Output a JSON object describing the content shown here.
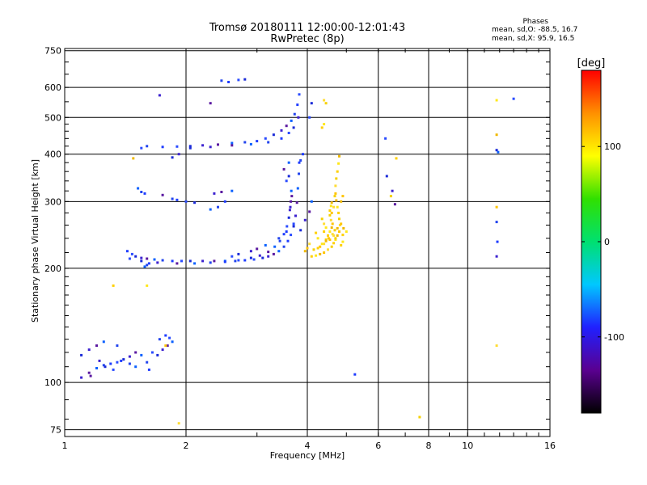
{
  "chart_data": {
    "type": "scatter",
    "title": "Tromsø 20180111 12:00:00-12:01:43",
    "subtitle": "RwPretec (8p)",
    "xlabel": "Frequency [MHz]",
    "ylabel": "Stationary phase Virtual Height [km]",
    "x_scale": "log",
    "y_scale": "log",
    "xlim": [
      1,
      16
    ],
    "ylim": [
      72,
      760
    ],
    "x_ticks": [
      1,
      2,
      4,
      6,
      8,
      10,
      16
    ],
    "y_ticks": [
      75,
      100,
      200,
      300,
      400,
      500,
      600,
      750
    ],
    "grid": true,
    "stats": {
      "heading": "Phases",
      "line1": "mean, sd,O: -88.5, 16.7",
      "line2": "mean, sd,X:  95.9, 16.5"
    },
    "colorbar": {
      "label": "[deg]",
      "range": [
        -180,
        180
      ],
      "ticks": [
        100,
        0,
        -100
      ],
      "colors": [
        "#000000",
        "#5a0090",
        "#2020ff",
        "#00c8ff",
        "#00e070",
        "#30e000",
        "#ffff00",
        "#ff9000",
        "#ff0000"
      ]
    },
    "series": [
      {
        "points": [
          [
            1.43,
            222
          ],
          [
            1.47,
            218
          ],
          [
            1.5,
            215
          ],
          [
            1.55,
            213
          ],
          [
            1.6,
            212
          ],
          [
            1.67,
            211
          ],
          [
            1.75,
            210
          ],
          [
            1.85,
            209
          ],
          [
            1.95,
            209
          ],
          [
            2.05,
            209
          ],
          [
            2.2,
            209
          ],
          [
            2.35,
            209
          ],
          [
            2.5,
            209
          ],
          [
            2.65,
            209
          ],
          [
            2.8,
            210
          ],
          [
            2.95,
            211
          ],
          [
            3.1,
            213
          ],
          [
            3.2,
            215
          ],
          [
            3.3,
            218
          ],
          [
            3.4,
            222
          ],
          [
            3.5,
            228
          ],
          [
            3.58,
            236
          ],
          [
            3.64,
            245
          ],
          [
            3.7,
            258
          ],
          [
            3.74,
            275
          ],
          [
            3.77,
            298
          ],
          [
            3.79,
            325
          ],
          [
            3.81,
            355
          ],
          [
            3.82,
            380
          ],
          [
            1.45,
            212
          ],
          [
            1.55,
            209
          ],
          [
            1.7,
            207
          ],
          [
            1.9,
            206
          ],
          [
            2.1,
            206
          ],
          [
            2.3,
            207
          ],
          [
            2.5,
            208
          ],
          [
            2.7,
            210
          ],
          [
            2.9,
            213
          ],
          [
            3.05,
            216
          ],
          [
            3.2,
            221
          ],
          [
            3.32,
            228
          ],
          [
            3.42,
            236
          ],
          [
            3.5,
            246
          ],
          [
            3.56,
            258
          ],
          [
            3.6,
            272
          ],
          [
            3.63,
            290
          ],
          [
            3.66,
            310
          ],
          [
            1.58,
            202
          ],
          [
            1.6,
            204
          ],
          [
            1.62,
            206
          ],
          [
            2.6,
            215
          ],
          [
            2.7,
            218
          ],
          [
            2.9,
            222
          ],
          [
            3.0,
            225
          ],
          [
            3.15,
            230
          ],
          [
            3.4,
            240
          ],
          [
            3.55,
            250
          ],
          [
            3.7,
            262
          ],
          [
            3.85,
            252
          ],
          [
            3.95,
            268
          ],
          [
            4.05,
            282
          ],
          [
            4.1,
            300
          ],
          [
            1.6,
            420
          ],
          [
            1.75,
            418
          ],
          [
            1.9,
            419
          ],
          [
            2.05,
            420
          ],
          [
            2.2,
            422
          ],
          [
            2.4,
            424
          ],
          [
            2.6,
            428
          ],
          [
            2.8,
            430
          ],
          [
            3.0,
            433
          ],
          [
            3.15,
            440
          ],
          [
            3.3,
            450
          ],
          [
            3.45,
            462
          ],
          [
            3.55,
            475
          ],
          [
            3.65,
            490
          ],
          [
            3.72,
            510
          ],
          [
            3.78,
            540
          ],
          [
            3.82,
            575
          ],
          [
            2.05,
            415
          ],
          [
            2.3,
            418
          ],
          [
            2.6,
            422
          ],
          [
            2.9,
            425
          ],
          [
            3.2,
            430
          ],
          [
            3.45,
            440
          ],
          [
            3.6,
            455
          ],
          [
            3.7,
            470
          ],
          [
            3.8,
            500
          ],
          [
            3.5,
            365
          ],
          [
            3.6,
            380
          ],
          [
            2.45,
            625
          ],
          [
            2.55,
            620
          ],
          [
            2.7,
            628
          ],
          [
            2.8,
            630
          ],
          [
            1.72,
            572
          ],
          [
            2.3,
            545
          ],
          [
            1.52,
            325
          ],
          [
            1.55,
            318
          ],
          [
            1.58,
            315
          ],
          [
            2.0,
            300
          ],
          [
            2.1,
            298
          ],
          [
            2.35,
            315
          ],
          [
            2.45,
            318
          ],
          [
            2.6,
            320
          ],
          [
            1.85,
            305
          ],
          [
            1.9,
            303
          ],
          [
            1.55,
            415
          ],
          [
            1.85,
            392
          ],
          [
            1.92,
            400
          ],
          [
            1.75,
            312
          ],
          [
            2.3,
            286
          ],
          [
            2.4,
            290
          ],
          [
            2.5,
            300
          ],
          [
            3.55,
            340
          ],
          [
            3.6,
            350
          ],
          [
            3.62,
            285
          ],
          [
            3.64,
            300
          ],
          [
            3.65,
            320
          ],
          [
            3.85,
            385
          ],
          [
            3.9,
            400
          ],
          [
            4.05,
            500
          ],
          [
            4.1,
            545
          ],
          [
            1.1,
            103
          ],
          [
            1.15,
            106
          ],
          [
            1.2,
            109
          ],
          [
            1.25,
            111
          ],
          [
            1.3,
            112
          ],
          [
            1.35,
            113
          ],
          [
            1.4,
            115
          ],
          [
            1.45,
            117
          ],
          [
            1.5,
            120
          ],
          [
            1.55,
            118
          ],
          [
            1.45,
            112
          ],
          [
            1.38,
            114
          ],
          [
            1.32,
            108
          ],
          [
            1.26,
            110
          ],
          [
            1.22,
            114
          ],
          [
            1.16,
            104
          ],
          [
            1.5,
            110
          ],
          [
            1.6,
            113
          ],
          [
            1.62,
            108
          ],
          [
            1.65,
            120
          ],
          [
            1.7,
            118
          ],
          [
            1.75,
            122
          ],
          [
            1.8,
            125
          ],
          [
            1.85,
            128
          ],
          [
            1.72,
            130
          ],
          [
            1.78,
            133
          ],
          [
            1.82,
            131
          ],
          [
            1.1,
            118
          ],
          [
            1.15,
            122
          ],
          [
            1.2,
            125
          ],
          [
            1.25,
            128
          ],
          [
            1.35,
            125
          ],
          [
            5.25,
            105
          ],
          [
            6.25,
            440
          ],
          [
            6.3,
            350
          ],
          [
            6.5,
            320
          ],
          [
            6.6,
            295
          ],
          [
            11.9,
            405
          ],
          [
            11.8,
            265
          ],
          [
            11.85,
            235
          ],
          [
            13.0,
            560
          ],
          [
            11.8,
            410
          ],
          [
            11.8,
            215
          ]
        ]
      },
      {
        "points": [
          [
            4.1,
            215
          ],
          [
            4.2,
            216
          ],
          [
            4.3,
            218
          ],
          [
            4.4,
            220
          ],
          [
            4.5,
            224
          ],
          [
            4.6,
            228
          ],
          [
            4.65,
            233
          ],
          [
            4.7,
            238
          ],
          [
            4.75,
            244
          ],
          [
            4.8,
            250
          ],
          [
            4.82,
            260
          ],
          [
            4.8,
            270
          ],
          [
            4.78,
            280
          ],
          [
            4.75,
            290
          ],
          [
            4.72,
            302
          ],
          [
            4.7,
            315
          ],
          [
            4.7,
            330
          ],
          [
            4.72,
            345
          ],
          [
            4.75,
            360
          ],
          [
            4.78,
            378
          ],
          [
            4.8,
            395
          ],
          [
            4.3,
            228
          ],
          [
            4.4,
            232
          ],
          [
            4.45,
            238
          ],
          [
            4.5,
            244
          ],
          [
            4.55,
            250
          ],
          [
            4.6,
            256
          ],
          [
            4.62,
            262
          ],
          [
            4.58,
            268
          ],
          [
            4.55,
            276
          ],
          [
            4.55,
            284
          ],
          [
            4.58,
            292
          ],
          [
            4.6,
            298
          ],
          [
            4.52,
            240
          ],
          [
            4.62,
            246
          ],
          [
            4.68,
            252
          ],
          [
            4.9,
            245
          ],
          [
            5.0,
            250
          ],
          [
            4.92,
            255
          ],
          [
            4.85,
            262
          ],
          [
            4.4,
            262
          ],
          [
            4.35,
            270
          ],
          [
            4.2,
            248
          ],
          [
            4.25,
            240
          ],
          [
            3.95,
            222
          ],
          [
            4.0,
            226
          ],
          [
            4.05,
            232
          ],
          [
            4.15,
            224
          ],
          [
            4.25,
            226
          ],
          [
            4.35,
            232
          ],
          [
            4.45,
            236
          ],
          [
            4.55,
            238
          ],
          [
            4.65,
            244
          ],
          [
            4.7,
            240
          ],
          [
            4.85,
            230
          ],
          [
            4.9,
            235
          ],
          [
            4.75,
            255
          ],
          [
            4.6,
            280
          ],
          [
            4.65,
            290
          ],
          [
            4.68,
            310
          ],
          [
            4.4,
            250
          ],
          [
            4.45,
            256
          ],
          [
            4.85,
            300
          ],
          [
            4.9,
            310
          ],
          [
            4.4,
            555
          ],
          [
            4.45,
            545
          ],
          [
            4.35,
            470
          ],
          [
            4.4,
            480
          ],
          [
            1.48,
            390
          ],
          [
            1.78,
            125
          ],
          [
            1.92,
            78
          ],
          [
            6.45,
            310
          ],
          [
            6.65,
            390
          ],
          [
            11.8,
            555
          ],
          [
            11.8,
            450
          ],
          [
            11.8,
            290
          ],
          [
            11.8,
            125
          ],
          [
            7.6,
            81
          ],
          [
            1.32,
            180
          ],
          [
            1.6,
            180
          ]
        ]
      }
    ]
  }
}
